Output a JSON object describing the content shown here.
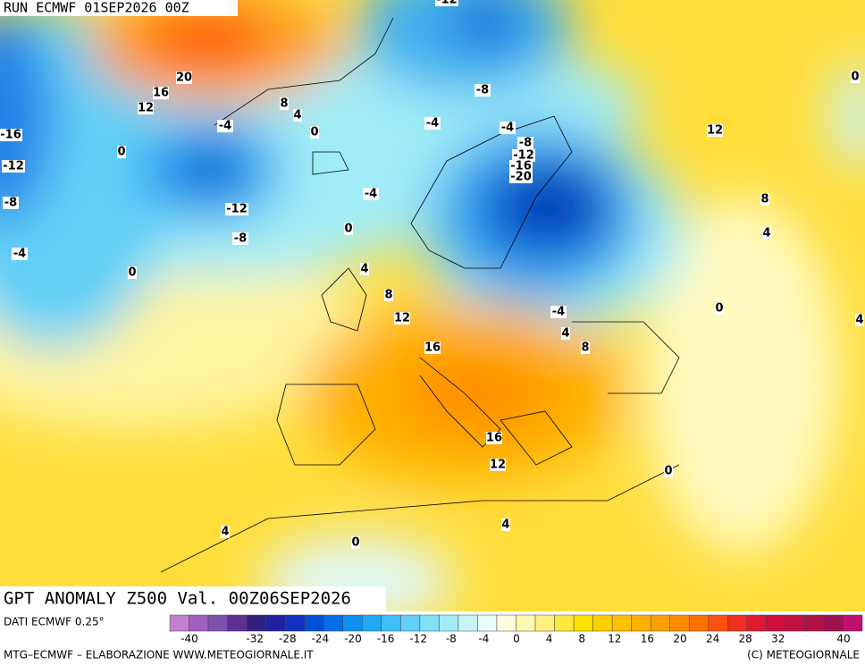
{
  "header": {
    "run": "RUN ECMWF 01SEP2026 00Z",
    "title": "GPT ANOMALY Z500 Val. 00Z06SEP2026"
  },
  "contour_labels": [
    "-12",
    "20",
    "16",
    "12",
    "8",
    "4",
    "-4",
    "0",
    "0",
    "-16",
    "-12",
    "-8",
    "-4",
    "0",
    "-12",
    "-8",
    "-8",
    "-4",
    "-4",
    "-8",
    "-12",
    "-16",
    "-20",
    "-4",
    "0",
    "4",
    "8",
    "12",
    "16",
    "16",
    "12",
    "-4",
    "4",
    "8",
    "12",
    "8",
    "4",
    "0",
    "0",
    "4",
    "0",
    "4",
    "4",
    "0"
  ],
  "colorbar": {
    "source": "DATI ECMWF 0.25°",
    "ticks": [
      -40,
      -32,
      -28,
      -24,
      -20,
      -16,
      -12,
      -8,
      -4,
      0,
      4,
      8,
      12,
      16,
      20,
      24,
      28,
      32,
      40
    ],
    "colors": [
      "#c080d0",
      "#a060c0",
      "#8050b0",
      "#603090",
      "#302080",
      "#2020a0",
      "#1030c0",
      "#0050d8",
      "#0070e8",
      "#1090f0",
      "#20a8f8",
      "#40c0f8",
      "#60d0f8",
      "#80e0f8",
      "#a0ecf8",
      "#c8f4f8",
      "#e8fcfc",
      "#ffffe0",
      "#fff8b0",
      "#fff080",
      "#ffe840",
      "#ffe000",
      "#ffd000",
      "#ffc000",
      "#ffb000",
      "#ffa000",
      "#ff8c00",
      "#ff7000",
      "#ff5010",
      "#f03020",
      "#e01830",
      "#d01040",
      "#c01040",
      "#b01048",
      "#a01050",
      "#c01070"
    ]
  },
  "footer": {
    "left": "MTG–ECMWF – ELABORAZIONE WWW.METEOGIORNALE.IT",
    "right": "(C) METEOGIORNALE"
  }
}
